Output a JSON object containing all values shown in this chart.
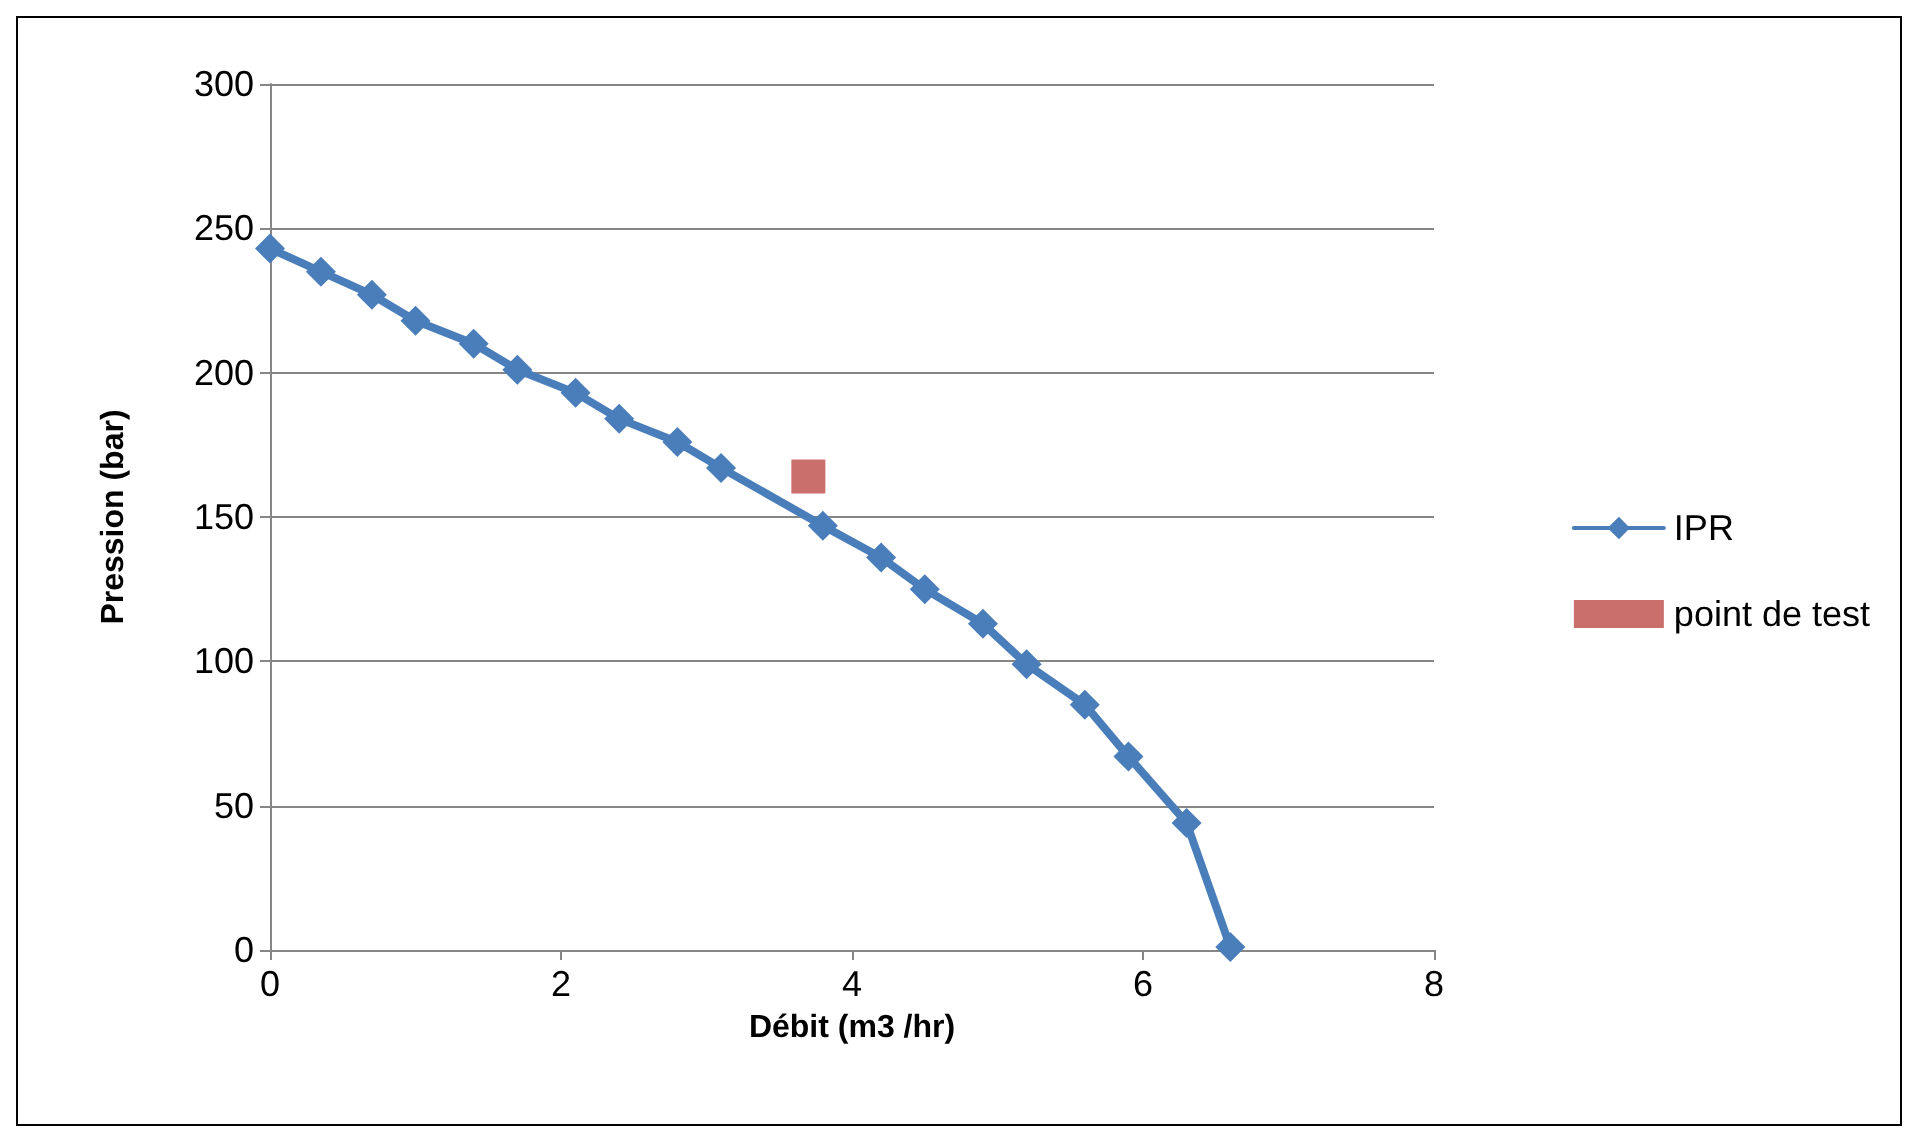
{
  "chart_data": {
    "type": "line",
    "xlabel": "Débit (m3 /hr)",
    "ylabel": "Pression (bar)",
    "xlim": [
      0,
      8
    ],
    "xticks": [
      0,
      2,
      4,
      6,
      8
    ],
    "ylim": [
      0,
      300
    ],
    "yticks": [
      0,
      50,
      100,
      150,
      200,
      250,
      300
    ],
    "grid": "y",
    "legend": "right",
    "series": [
      {
        "name": "IPR",
        "color": "#4a7ebb",
        "marker": "diamond",
        "x": [
          0,
          0.35,
          0.7,
          1.0,
          1.4,
          1.7,
          2.1,
          2.4,
          2.8,
          3.1,
          3.8,
          4.2,
          4.5,
          4.9,
          5.2,
          5.6,
          5.9,
          6.3,
          6.6
        ],
        "values": [
          243,
          235,
          227,
          218,
          210,
          201,
          193,
          184,
          176,
          167,
          147,
          136,
          125,
          113,
          99,
          85,
          67,
          44,
          1
        ]
      },
      {
        "name": "point de test",
        "type": "scatter",
        "color": "#be4b48",
        "marker": "square",
        "x": [
          3.7
        ],
        "values": [
          164
        ]
      }
    ]
  }
}
